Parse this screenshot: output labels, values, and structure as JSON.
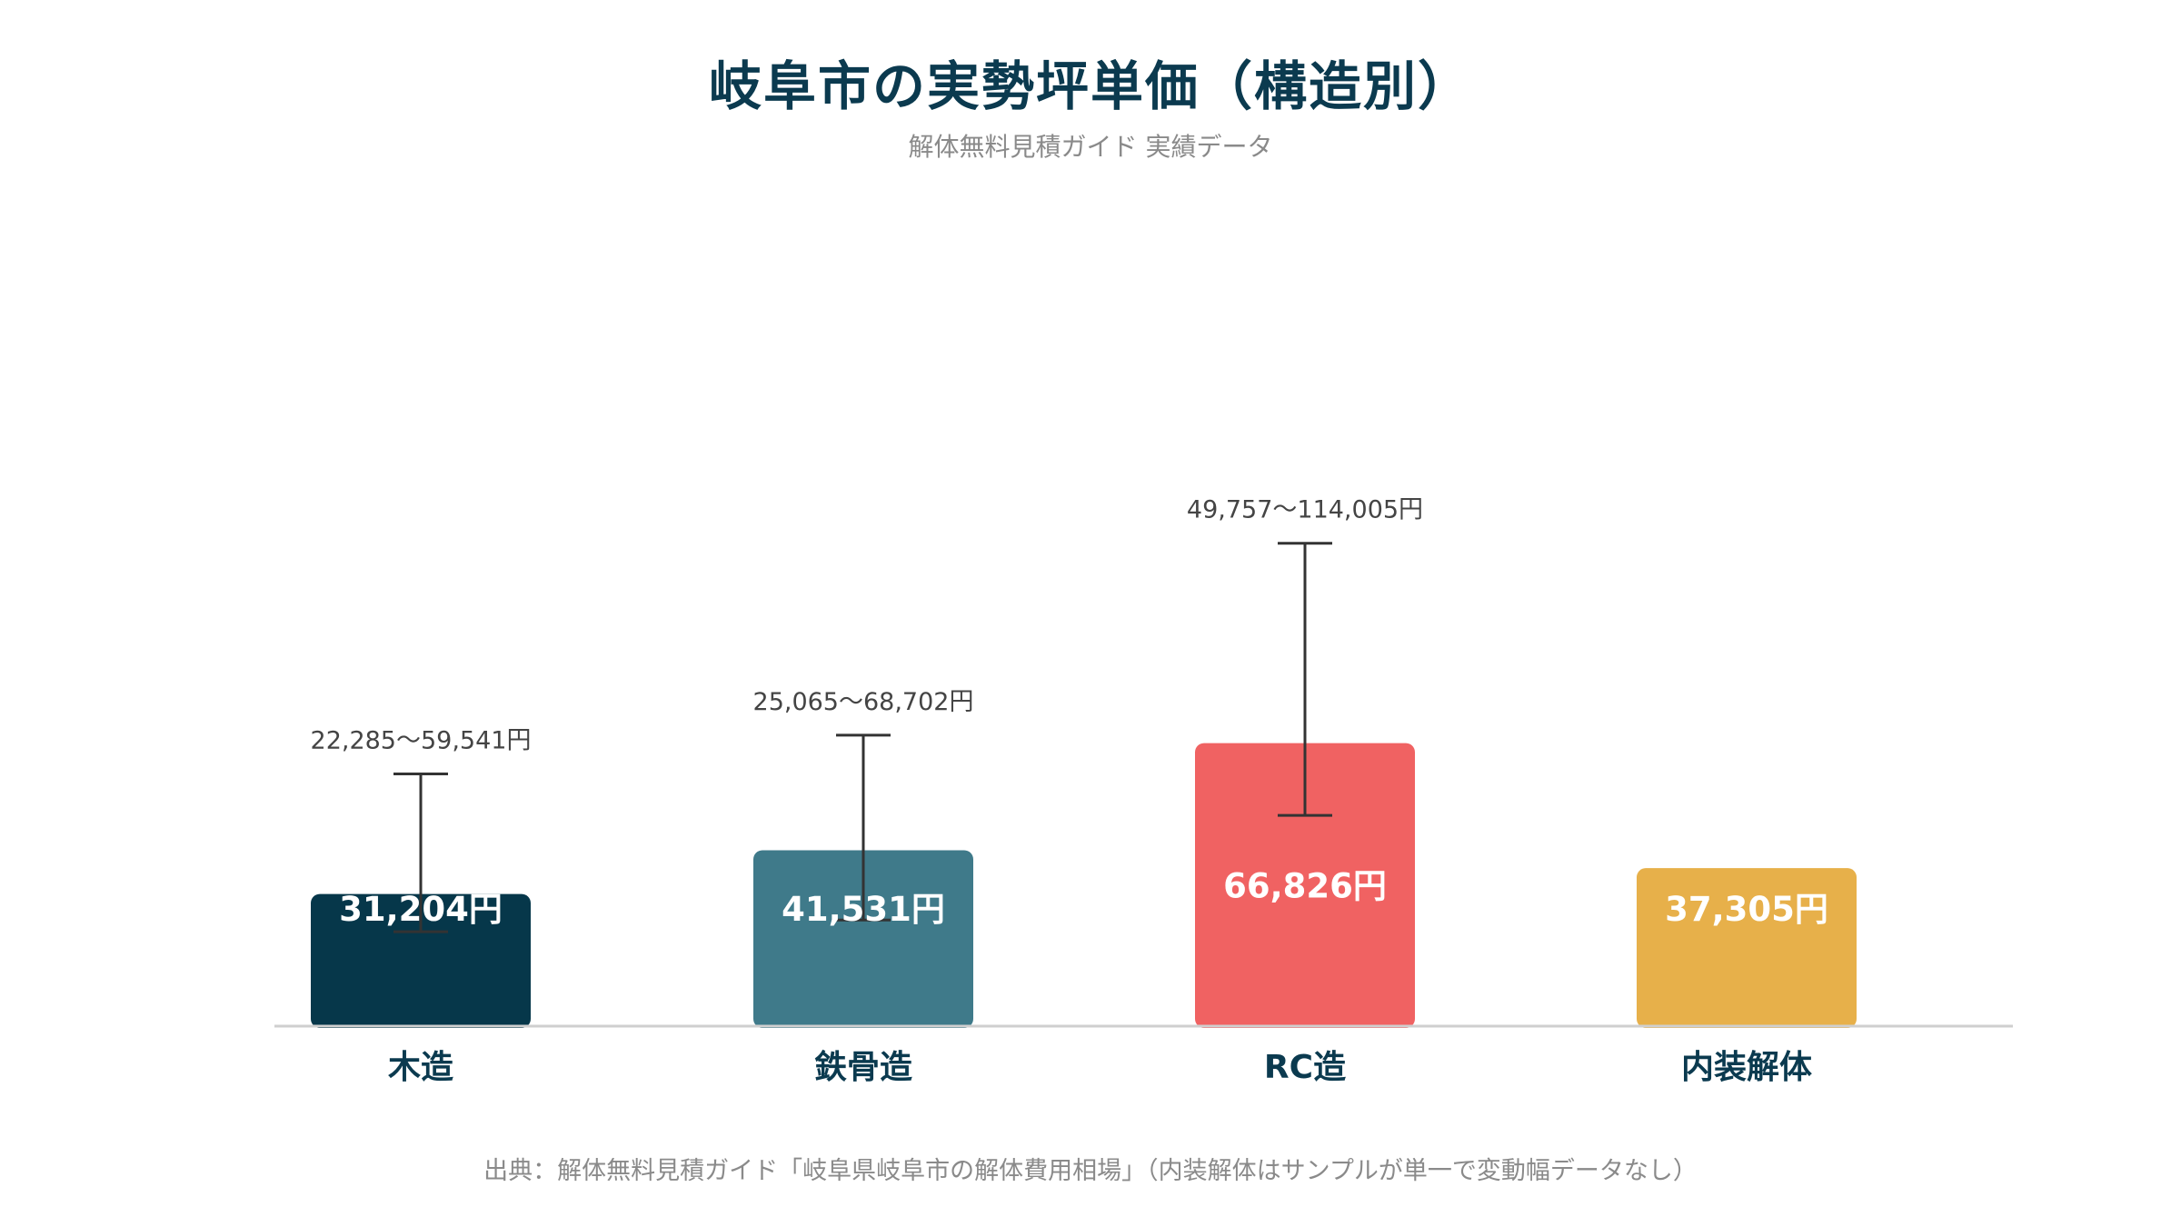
{
  "title": "岐阜市の実勢坪単価（構造別）",
  "subtitle": "解体無料見積ガイド 実績データ",
  "footer": "出典：解体無料見積ガイド「岐阜県岐阜市の解体費用相場」（内装解体はサンプルが単一で変動幅データなし）",
  "chart_data": {
    "type": "bar",
    "categories": [
      "木造",
      "鉄骨造",
      "RC造",
      "内装解体"
    ],
    "values": [
      31204,
      41531,
      66826,
      37305
    ],
    "value_labels": [
      "31,204円",
      "41,531円",
      "66,826円",
      "37,305円"
    ],
    "ranges": [
      [
        22285,
        59541
      ],
      [
        25065,
        68702
      ],
      [
        49757,
        114005
      ],
      null
    ],
    "range_labels": [
      "22,285〜59,541円",
      "25,065〜68,702円",
      "49,757〜114,005円",
      null
    ],
    "colors": [
      "#06374a",
      "#3f7a8a",
      "#f06262",
      "#e7b04a"
    ],
    "ylim": [
      0,
      120000
    ],
    "grid": false,
    "legend": "none"
  }
}
